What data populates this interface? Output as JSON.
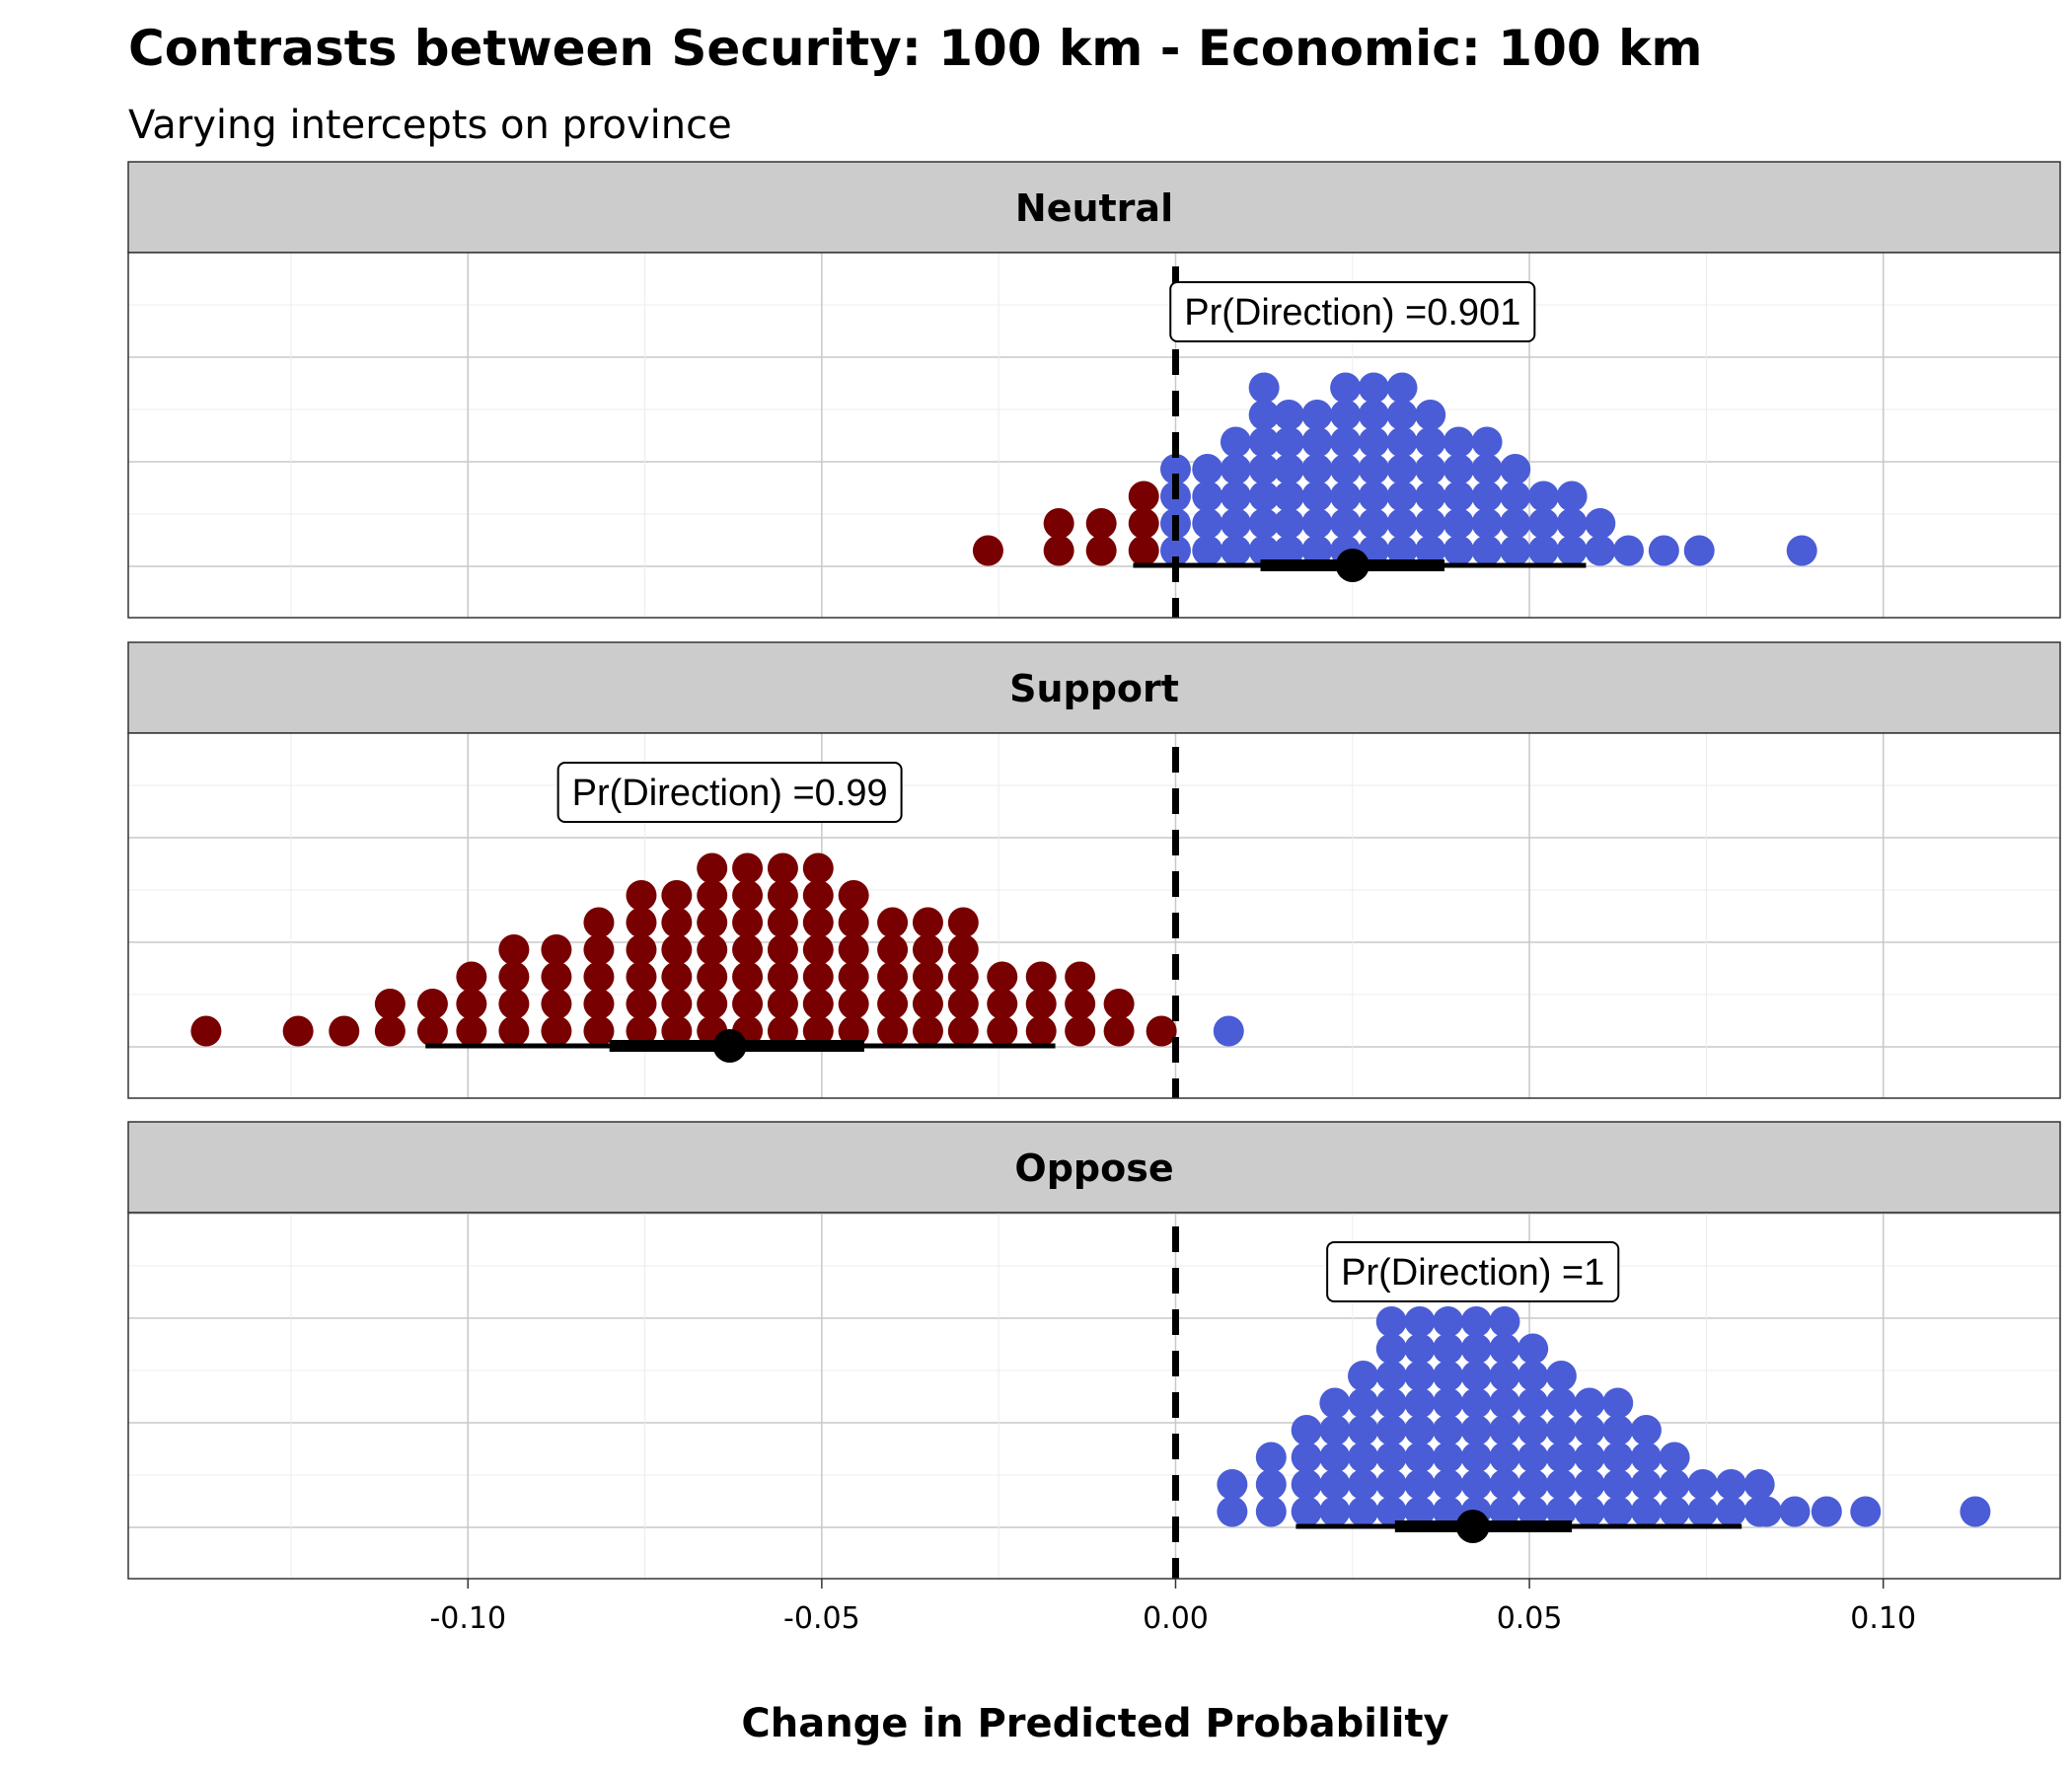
{
  "chart_data": {
    "type": "dotplot",
    "title": "Contrasts between Security: 100 km - Economic: 100 km",
    "subtitle": "Varying intercepts on province",
    "xlabel": "Change in Predicted Probability",
    "xlim": [
      -0.148,
      0.125
    ],
    "xticks": [
      "-0.10",
      "-0.05",
      "0.00",
      "0.05",
      "0.10"
    ],
    "xtick_values": [
      -0.1,
      -0.05,
      0.0,
      0.05,
      0.1
    ],
    "reference_line": 0.0,
    "colors": {
      "positive": "#4a5dd6",
      "negative": "#780000",
      "point": "#000000"
    },
    "panels": [
      {
        "name": "Neutral",
        "annotation": "Pr(Direction) =0.901",
        "annotation_x": 0.025,
        "point_estimate": 0.025,
        "interval_inner": [
          0.012,
          0.038
        ],
        "interval_outer": [
          -0.006,
          0.058
        ],
        "dots": [
          {
            "x": -0.0265,
            "n": 1
          },
          {
            "x": -0.0165,
            "n": 2
          },
          {
            "x": -0.0105,
            "n": 2
          },
          {
            "x": -0.0045,
            "n": 3
          },
          {
            "x": 0.0,
            "n": 4
          },
          {
            "x": 0.0045,
            "n": 4
          },
          {
            "x": 0.0085,
            "n": 5
          },
          {
            "x": 0.0125,
            "n": 7
          },
          {
            "x": 0.016,
            "n": 6
          },
          {
            "x": 0.02,
            "n": 6
          },
          {
            "x": 0.024,
            "n": 7
          },
          {
            "x": 0.028,
            "n": 7
          },
          {
            "x": 0.032,
            "n": 7
          },
          {
            "x": 0.036,
            "n": 6
          },
          {
            "x": 0.04,
            "n": 5
          },
          {
            "x": 0.044,
            "n": 5
          },
          {
            "x": 0.048,
            "n": 4
          },
          {
            "x": 0.052,
            "n": 3
          },
          {
            "x": 0.056,
            "n": 3
          },
          {
            "x": 0.06,
            "n": 2
          },
          {
            "x": 0.064,
            "n": 1
          },
          {
            "x": 0.069,
            "n": 1
          },
          {
            "x": 0.074,
            "n": 1
          },
          {
            "x": 0.0885,
            "n": 1
          }
        ]
      },
      {
        "name": "Support",
        "annotation": "Pr(Direction) =0.99",
        "annotation_x": -0.063,
        "point_estimate": -0.063,
        "interval_inner": [
          -0.08,
          -0.044
        ],
        "interval_outer": [
          -0.106,
          -0.017
        ],
        "dots": [
          {
            "x": -0.137,
            "n": 1
          },
          {
            "x": -0.124,
            "n": 1
          },
          {
            "x": -0.1175,
            "n": 1
          },
          {
            "x": -0.111,
            "n": 2
          },
          {
            "x": -0.105,
            "n": 2
          },
          {
            "x": -0.0995,
            "n": 3
          },
          {
            "x": -0.0935,
            "n": 4
          },
          {
            "x": -0.0875,
            "n": 4
          },
          {
            "x": -0.0815,
            "n": 5
          },
          {
            "x": -0.0755,
            "n": 6
          },
          {
            "x": -0.0705,
            "n": 6
          },
          {
            "x": -0.0655,
            "n": 7
          },
          {
            "x": -0.0605,
            "n": 7
          },
          {
            "x": -0.0555,
            "n": 7
          },
          {
            "x": -0.0505,
            "n": 7
          },
          {
            "x": -0.0455,
            "n": 6
          },
          {
            "x": -0.04,
            "n": 5
          },
          {
            "x": -0.035,
            "n": 5
          },
          {
            "x": -0.03,
            "n": 5
          },
          {
            "x": -0.0245,
            "n": 3
          },
          {
            "x": -0.019,
            "n": 3
          },
          {
            "x": -0.0135,
            "n": 3
          },
          {
            "x": -0.008,
            "n": 2
          },
          {
            "x": -0.002,
            "n": 1
          },
          {
            "x": 0.0075,
            "n": 1
          }
        ]
      },
      {
        "name": "Oppose",
        "annotation": "Pr(Direction) =1",
        "annotation_x": 0.042,
        "point_estimate": 0.042,
        "interval_inner": [
          0.031,
          0.056
        ],
        "interval_outer": [
          0.017,
          0.08
        ],
        "dots": [
          {
            "x": 0.008,
            "n": 2
          },
          {
            "x": 0.0135,
            "n": 3
          },
          {
            "x": 0.0185,
            "n": 4
          },
          {
            "x": 0.0225,
            "n": 5
          },
          {
            "x": 0.0265,
            "n": 6
          },
          {
            "x": 0.0305,
            "n": 8
          },
          {
            "x": 0.0345,
            "n": 8
          },
          {
            "x": 0.0385,
            "n": 8
          },
          {
            "x": 0.0425,
            "n": 8
          },
          {
            "x": 0.0465,
            "n": 8
          },
          {
            "x": 0.0505,
            "n": 7
          },
          {
            "x": 0.0545,
            "n": 6
          },
          {
            "x": 0.0585,
            "n": 5
          },
          {
            "x": 0.0625,
            "n": 5
          },
          {
            "x": 0.0665,
            "n": 4
          },
          {
            "x": 0.0705,
            "n": 3
          },
          {
            "x": 0.0745,
            "n": 2
          },
          {
            "x": 0.0785,
            "n": 2
          },
          {
            "x": 0.0825,
            "n": 2
          },
          {
            "x": 0.0835,
            "n": 1
          },
          {
            "x": 0.0875,
            "n": 1
          },
          {
            "x": 0.092,
            "n": 1
          },
          {
            "x": 0.0975,
            "n": 1
          },
          {
            "x": 0.113,
            "n": 1
          }
        ]
      }
    ]
  }
}
